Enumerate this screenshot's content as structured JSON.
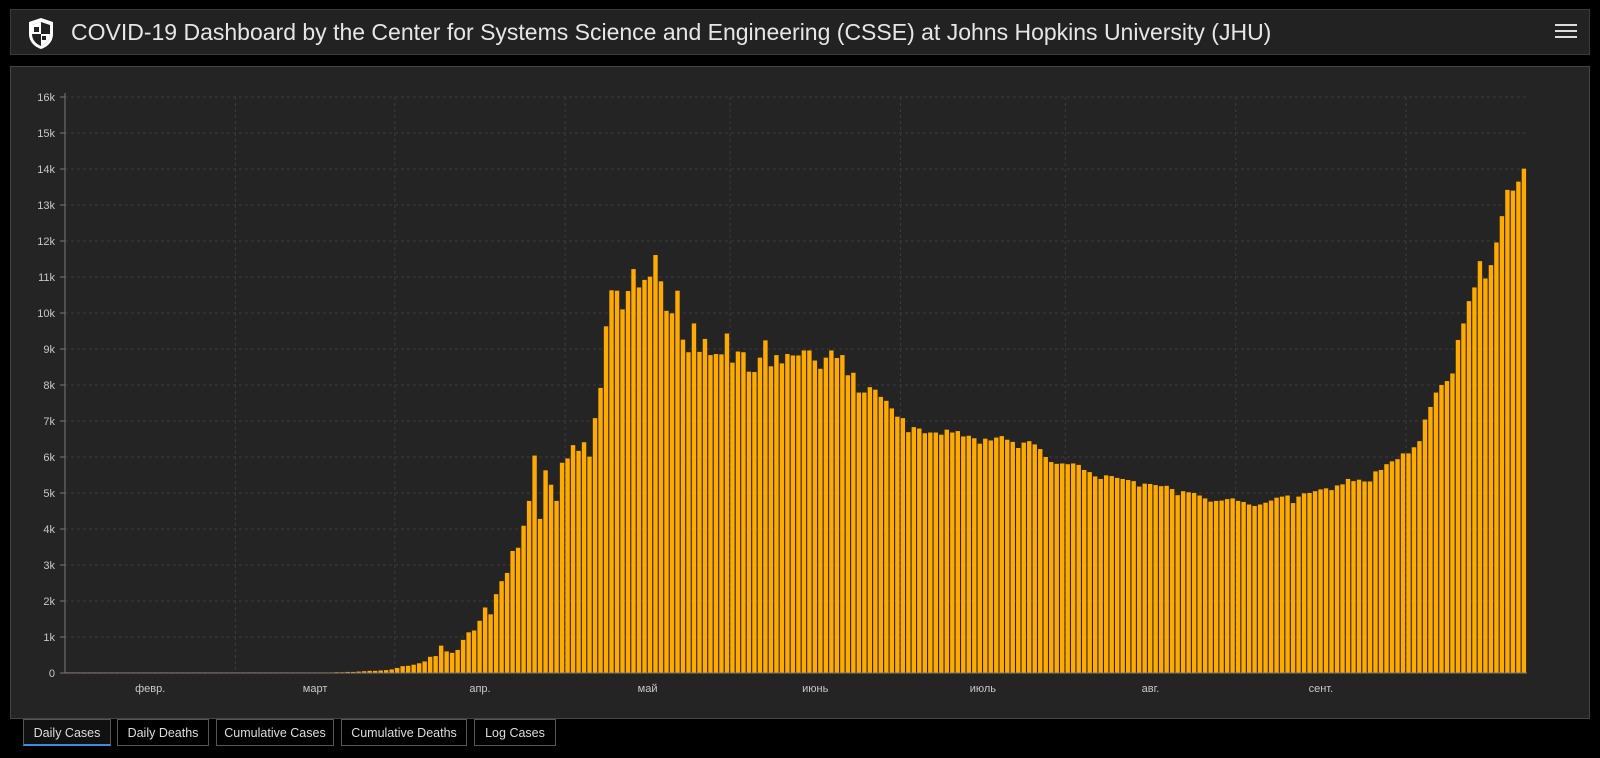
{
  "header": {
    "title": "COVID-19 Dashboard by the Center for Systems Science and Engineering (CSSE) at Johns Hopkins University (JHU)"
  },
  "colors": {
    "bar": "#ffaa00",
    "background": "#242424",
    "grid": "#3c3c3c",
    "text": "#c8c8c8",
    "tab_active_underline": "#3a8dde"
  },
  "tabs": [
    {
      "label": "Daily Cases",
      "active": true
    },
    {
      "label": "Daily Deaths",
      "active": false
    },
    {
      "label": "Cumulative Cases",
      "active": false
    },
    {
      "label": "Cumulative Deaths",
      "active": false
    },
    {
      "label": "Log Cases",
      "active": false
    }
  ],
  "chart_data": {
    "type": "bar",
    "title": "",
    "xlabel": "",
    "ylabel": "",
    "ylim": [
      0,
      16000
    ],
    "y_ticks": [
      0,
      1000,
      2000,
      3000,
      4000,
      5000,
      6000,
      7000,
      8000,
      9000,
      10000,
      11000,
      12000,
      13000,
      14000,
      15000,
      16000
    ],
    "y_tick_labels": [
      "0",
      "1k",
      "2k",
      "3k",
      "4k",
      "5k",
      "6k",
      "7k",
      "8k",
      "9k",
      "10k",
      "11k",
      "12k",
      "13k",
      "14k",
      "15k",
      "16k"
    ],
    "x_tick_labels": [
      "февр.",
      "март",
      "апр.",
      "май",
      "июнь",
      "июль",
      "авг.",
      "сент."
    ],
    "grid": true,
    "series": [
      {
        "values": [
          0,
          0,
          0,
          0,
          0,
          0,
          0,
          0,
          0,
          0,
          0,
          0,
          0,
          0,
          0,
          0,
          0,
          0,
          0,
          0,
          0,
          0,
          0,
          0,
          0,
          0,
          0,
          0,
          0,
          0,
          0,
          0,
          0,
          0,
          0,
          0,
          0,
          0,
          0,
          0,
          0,
          0,
          0,
          0,
          0,
          0,
          0,
          0,
          0,
          10,
          20,
          30,
          30,
          40,
          50,
          60,
          60,
          70,
          80,
          100,
          140,
          190,
          200,
          230,
          270,
          320,
          450,
          470,
          760,
          600,
          560,
          640,
          920,
          1130,
          1180,
          1450,
          1820,
          1630,
          2190,
          2550,
          2780,
          3390,
          3480,
          4090,
          4780,
          6040,
          4280,
          5630,
          5230,
          4780,
          5840,
          5960,
          6330,
          6170,
          6410,
          6010,
          7080,
          7920,
          9630,
          10630,
          10620,
          10100,
          10610,
          11220,
          10710,
          10920,
          11010,
          11610,
          10880,
          10060,
          9990,
          10620,
          9260,
          8910,
          9710,
          8920,
          9280,
          8830,
          8860,
          8850,
          9430,
          8620,
          8930,
          8910,
          8370,
          8360,
          8760,
          9240,
          8520,
          8830,
          8600,
          8860,
          8820,
          8820,
          8960,
          8960,
          8680,
          8450,
          8760,
          8960,
          8750,
          8830,
          8270,
          8340,
          7790,
          7790,
          7940,
          7870,
          7670,
          7560,
          7350,
          7120,
          7080,
          6690,
          6830,
          6790,
          6660,
          6680,
          6680,
          6620,
          6760,
          6680,
          6720,
          6570,
          6590,
          6520,
          6370,
          6510,
          6460,
          6540,
          6580,
          6480,
          6420,
          6250,
          6400,
          6440,
          6350,
          6220,
          6000,
          5860,
          5810,
          5820,
          5800,
          5820,
          5780,
          5640,
          5580,
          5460,
          5390,
          5490,
          5470,
          5420,
          5390,
          5360,
          5330,
          5180,
          5260,
          5250,
          5220,
          5190,
          5200,
          5110,
          4940,
          5050,
          5020,
          5000,
          4930,
          4850,
          4760,
          4780,
          4790,
          4830,
          4850,
          4780,
          4750,
          4680,
          4640,
          4680,
          4730,
          4790,
          4870,
          4900,
          4930,
          4720,
          4900,
          4990,
          5000,
          5050,
          5100,
          5130,
          5080,
          5210,
          5240,
          5390,
          5330,
          5370,
          5320,
          5320,
          5600,
          5640,
          5800,
          5880,
          5940,
          6100,
          6100,
          6270,
          6440,
          7040,
          7390,
          7790,
          8000,
          8110,
          8320,
          9250,
          9710,
          10330,
          10710,
          11440,
          10960,
          11330,
          11960,
          12690,
          13420,
          13400,
          13650,
          14010
        ]
      }
    ]
  }
}
